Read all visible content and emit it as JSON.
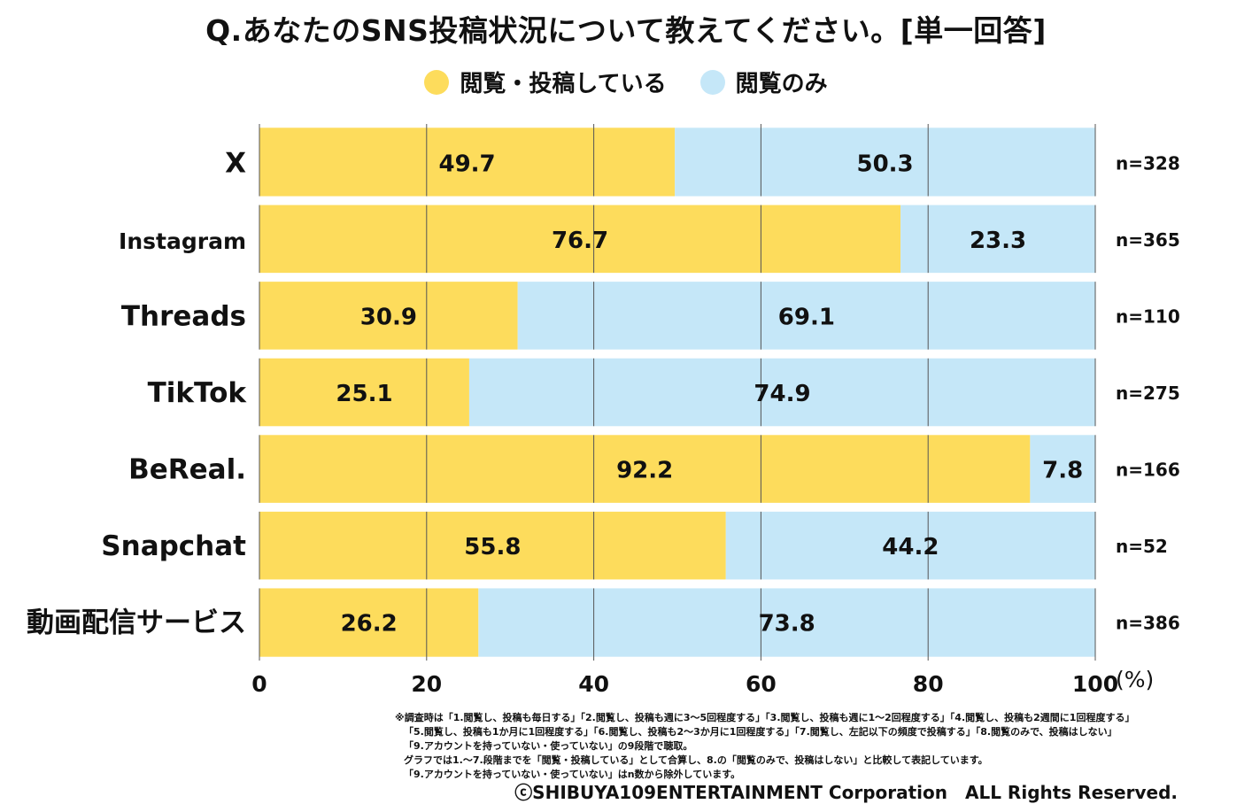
{
  "title": "Q.あなたのSNS投稿状況について教えてください。[単一回答]",
  "legend": [
    {
      "label": "閲覧・投稿している",
      "color": "#FDDC5C"
    },
    {
      "label": "閲覧のみ",
      "color": "#C5E7F8"
    }
  ],
  "chart_data": {
    "type": "bar",
    "orientation": "horizontal",
    "stacked": true,
    "categories": [
      "X",
      "Instagram",
      "Threads",
      "TikTok",
      "BeReal.",
      "Snapchat",
      "動画配信サービス"
    ],
    "series": [
      {
        "name": "閲覧・投稿している",
        "color": "#FDDC5C",
        "values": [
          49.7,
          76.7,
          30.9,
          25.1,
          92.2,
          55.8,
          26.2
        ]
      },
      {
        "name": "閲覧のみ",
        "color": "#C5E7F8",
        "values": [
          50.3,
          23.3,
          69.1,
          74.9,
          7.8,
          44.2,
          73.8
        ]
      }
    ],
    "sample_sizes": [
      "n=328",
      "n=365",
      "n=110",
      "n=275",
      "n=166",
      "n=52",
      "n=386"
    ],
    "xlim": [
      0,
      100
    ],
    "xticks": [
      0,
      20,
      40,
      60,
      80,
      100
    ],
    "x_unit": "(%)",
    "grid": true
  },
  "footnotes": [
    "※調査時は「1.閲覧し、投稿も毎日する」「2.閲覧し、投稿も週に3〜5回程度する」「3.閲覧し、投稿も週に1〜2回程度する」「4.閲覧し、投稿も2週間に1回程度する」",
    "「5.閲覧し、投稿も1か月に1回程度する」「6.閲覧し、投稿も2〜3か月に1回程度する」「7.閲覧し、左記以下の頻度で投稿する」「8.閲覧のみで、投稿はしない」",
    "「9.アカウントを持っていない・使っていない」の9段階で聴取。",
    "グラフでは1.〜7.段階までを「閲覧・投稿している」として合算し、8.の「閲覧のみで、投稿はしない」と比較して表記しています。",
    "「9.アカウントを持っていない・使っていない」はn数から除外しています。"
  ],
  "copyright": "ⓒSHIBUYA109ENTERTAINMENT Corporation　ALL Rights Reserved."
}
